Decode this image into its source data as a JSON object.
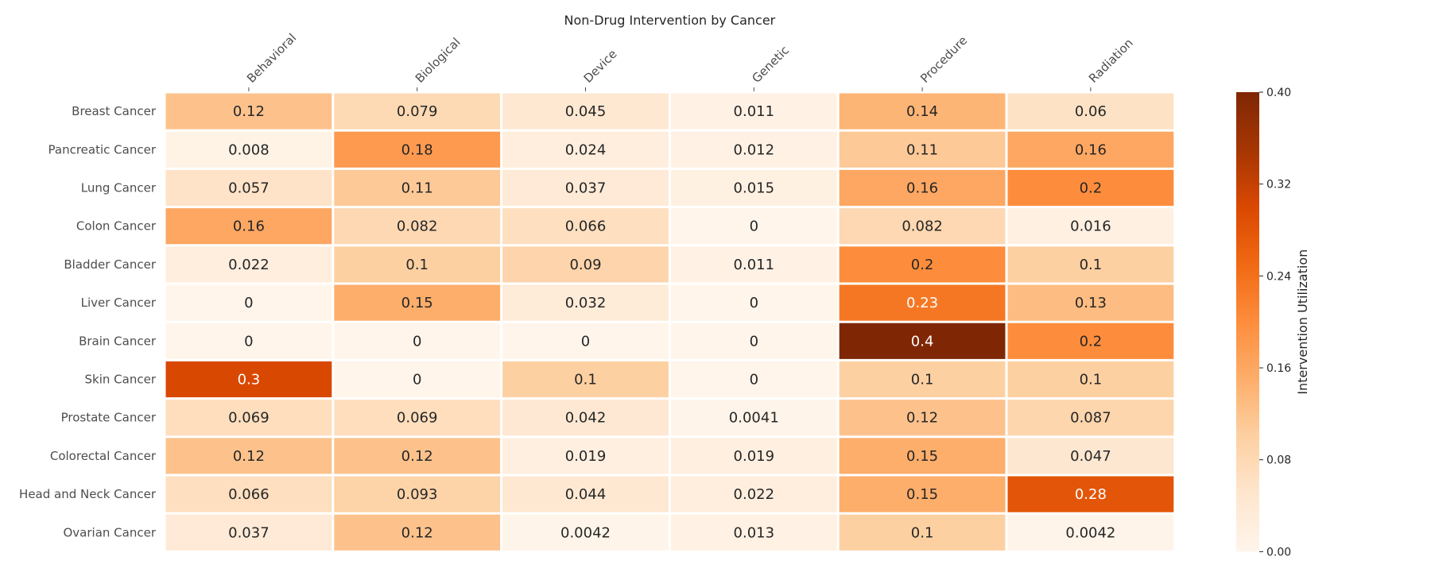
{
  "chart_data": {
    "type": "heatmap",
    "title": "Non-Drug Intervention by Cancer",
    "columns": [
      "Behavioral",
      "Biological",
      "Device",
      "Genetic",
      "Procedure",
      "Radiation"
    ],
    "rows": [
      "Breast Cancer",
      "Pancreatic Cancer",
      "Lung Cancer",
      "Colon Cancer",
      "Bladder Cancer",
      "Liver Cancer",
      "Brain Cancer",
      "Skin Cancer",
      "Prostate Cancer",
      "Colorectal Cancer",
      "Head and Neck Cancer",
      "Ovarian Cancer"
    ],
    "values": [
      [
        0.12,
        0.079,
        0.045,
        0.011,
        0.14,
        0.06
      ],
      [
        0.008,
        0.18,
        0.024,
        0.012,
        0.11,
        0.16
      ],
      [
        0.057,
        0.11,
        0.037,
        0.015,
        0.16,
        0.2
      ],
      [
        0.16,
        0.082,
        0.066,
        0,
        0.082,
        0.016
      ],
      [
        0.022,
        0.1,
        0.09,
        0.011,
        0.2,
        0.1
      ],
      [
        0,
        0.15,
        0.032,
        0,
        0.23,
        0.13
      ],
      [
        0,
        0,
        0,
        0,
        0.4,
        0.2
      ],
      [
        0.3,
        0,
        0.1,
        0,
        0.1,
        0.1
      ],
      [
        0.069,
        0.069,
        0.042,
        0.0041,
        0.12,
        0.087
      ],
      [
        0.12,
        0.12,
        0.019,
        0.019,
        0.15,
        0.047
      ],
      [
        0.066,
        0.093,
        0.044,
        0.022,
        0.15,
        0.28
      ],
      [
        0.037,
        0.12,
        0.0042,
        0.013,
        0.1,
        0.0042
      ]
    ],
    "colorbar": {
      "label": "Intervention Utilization",
      "range": [
        0,
        0.4
      ],
      "ticks": [
        "0.00",
        "0.08",
        "0.16",
        "0.24",
        "0.32",
        "0.40"
      ]
    },
    "colormap": "Oranges",
    "colormap_stops": [
      "#fff5eb",
      "#fee6ce",
      "#fdd0a2",
      "#fdae6b",
      "#fd8d3c",
      "#f16913",
      "#d94801",
      "#a63603",
      "#7f2704"
    ]
  }
}
